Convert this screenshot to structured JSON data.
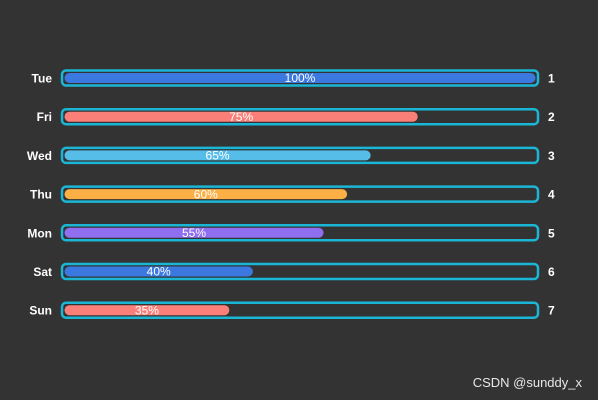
{
  "chart_data": {
    "type": "bar",
    "orientation": "horizontal",
    "categories": [
      "Tue",
      "Fri",
      "Wed",
      "Thu",
      "Mon",
      "Sat",
      "Sun"
    ],
    "values": [
      100,
      75,
      65,
      60,
      55,
      40,
      35
    ],
    "value_labels": [
      "100%",
      "75%",
      "65%",
      "60%",
      "55%",
      "40%",
      "35%"
    ],
    "ranks": [
      "1",
      "2",
      "3",
      "4",
      "5",
      "6",
      "7"
    ],
    "colors": [
      "#3b78e0",
      "#fb7f79",
      "#56bce8",
      "#fcaf45",
      "#8f6ff0",
      "#3b78e0",
      "#fb7f79"
    ],
    "frame_color": "#1bb6d6",
    "xlim": [
      0,
      100
    ],
    "grid": false,
    "title": "",
    "xlabel": "",
    "ylabel": ""
  },
  "watermark": "CSDN @sunddy_x"
}
